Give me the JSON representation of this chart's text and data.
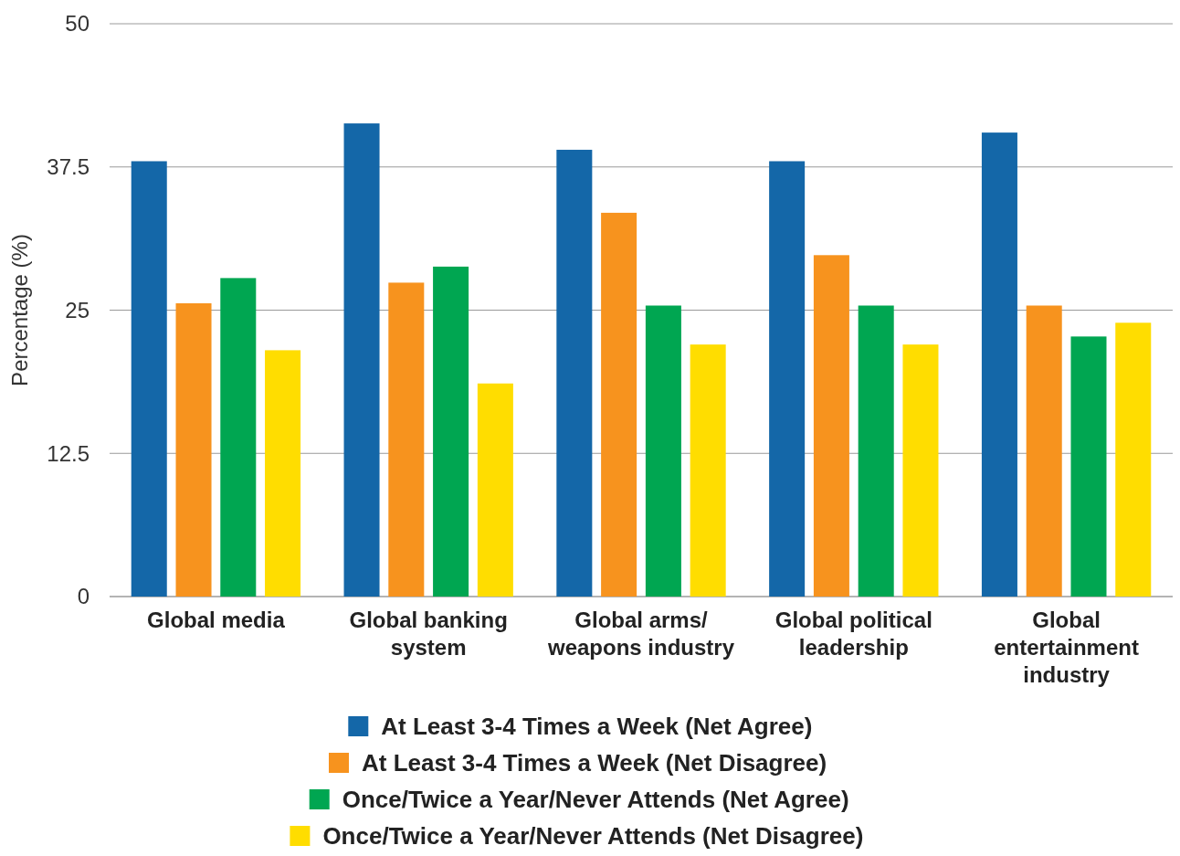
{
  "chart_data": {
    "type": "bar",
    "ylabel": "Percentage (%)",
    "categories": [
      "Global media",
      "Global banking system",
      "Global arms/ weapons industry",
      "Global political leadership",
      "Global entertainment industry"
    ],
    "series": [
      {
        "name": "At Least 3-4 Times a Week (Net Agree)",
        "color": "#1467a8",
        "values": [
          38.0,
          41.3,
          39.0,
          38.0,
          40.5
        ]
      },
      {
        "name": "At Least 3-4 Times a Week (Net Disagree)",
        "color": "#f7931e",
        "values": [
          25.6,
          27.4,
          33.5,
          29.8,
          25.4
        ]
      },
      {
        "name": "Once/Twice a Year/Never Attends (Net Agree)",
        "color": "#00a651",
        "values": [
          27.8,
          28.8,
          25.4,
          25.4,
          22.7
        ]
      },
      {
        "name": "Once/Twice a Year/Never Attends (Net Disagree)",
        "color": "#ffdd00",
        "values": [
          21.5,
          18.6,
          22.0,
          22.0,
          23.9
        ]
      }
    ],
    "ylim": [
      0,
      50
    ],
    "yticks": [
      0,
      {
        "value": 12.5,
        "label": "12.5"
      },
      25,
      {
        "value": 37.5,
        "label": "37.5"
      },
      50
    ],
    "grid": "y",
    "legend": "bottom"
  }
}
